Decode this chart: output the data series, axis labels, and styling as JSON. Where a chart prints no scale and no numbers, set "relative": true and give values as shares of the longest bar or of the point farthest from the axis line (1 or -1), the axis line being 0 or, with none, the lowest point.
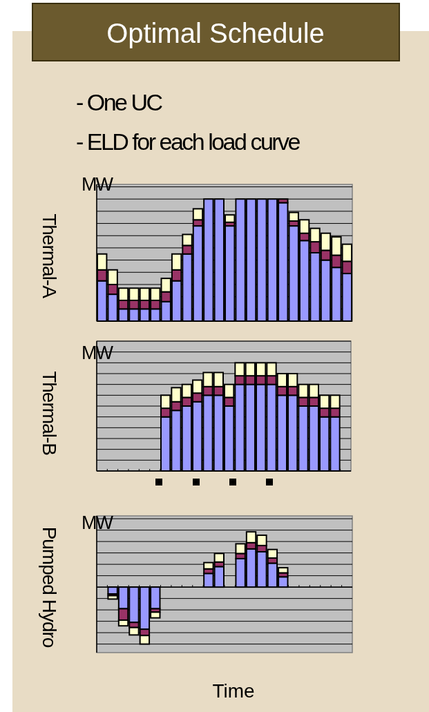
{
  "chart_data": [
    {
      "type": "bar",
      "title": "Optimal Schedule",
      "ylabel": "Thermal-A",
      "annotations": [
        "- One UC",
        "- ELD for each load curve",
        "MW"
      ],
      "stacked": true,
      "relative": true,
      "grid": "y",
      "categories": [
        null,
        null,
        null,
        null,
        null,
        null,
        null,
        null,
        null,
        null,
        null,
        null,
        null,
        null,
        null,
        null,
        null,
        null,
        null,
        null,
        null,
        null,
        null,
        null
      ],
      "series": [
        {
          "color": "#9999ff",
          "values": [
            0.33,
            0.22,
            0.1,
            0.1,
            0.1,
            0.1,
            0.16,
            0.33,
            0.55,
            0.78,
            1,
            1,
            0.78,
            1,
            1,
            1,
            1,
            0.97,
            0.78,
            0.66,
            0.56,
            0.5,
            0.44,
            0.39
          ]
        },
        {
          "color": "#993366",
          "values": [
            0.09,
            0.08,
            0.07,
            0.07,
            0.07,
            0.07,
            0.08,
            0.09,
            0.07,
            0.05,
            null,
            null,
            0.03,
            null,
            null,
            null,
            null,
            0.03,
            0.04,
            0.06,
            0.09,
            0.08,
            0.1,
            0.1
          ]
        },
        {
          "color": "#ffffcc",
          "values": [
            0.13,
            0.12,
            0.1,
            0.1,
            0.1,
            0.1,
            0.11,
            0.13,
            0.09,
            0.09,
            null,
            null,
            0.06,
            null,
            null,
            null,
            null,
            null,
            0.07,
            0.11,
            0.11,
            0.14,
            0.15,
            0.14
          ]
        }
      ]
    },
    {
      "type": "bar",
      "ylabel": "Thermal-B",
      "annotations": [
        "MW"
      ],
      "stacked": true,
      "relative": true,
      "grid": "y",
      "categories": [
        null,
        null,
        null,
        null,
        null,
        null,
        null,
        null,
        null,
        null,
        null,
        null,
        null,
        null,
        null,
        null,
        null,
        null,
        null,
        null,
        null,
        null,
        null,
        null
      ],
      "series": [
        {
          "color": "#9999ff",
          "values": [
            null,
            null,
            null,
            null,
            null,
            null,
            0.5,
            0.56,
            0.6,
            0.64,
            0.7,
            0.7,
            0.6,
            0.8,
            0.8,
            0.8,
            0.8,
            0.7,
            0.7,
            0.6,
            0.6,
            0.5,
            0.5,
            null
          ]
        },
        {
          "color": "#993366",
          "values": [
            null,
            null,
            null,
            null,
            null,
            null,
            0.08,
            0.08,
            0.08,
            0.08,
            0.08,
            0.08,
            0.08,
            0.08,
            0.08,
            0.08,
            0.08,
            0.08,
            0.08,
            0.08,
            0.08,
            0.08,
            0.08,
            null
          ]
        },
        {
          "color": "#ffffcc",
          "values": [
            null,
            null,
            null,
            null,
            null,
            null,
            0.12,
            0.13,
            0.12,
            0.12,
            0.13,
            0.13,
            0.12,
            0.12,
            0.12,
            0.12,
            0.12,
            0.12,
            0.12,
            0.12,
            0.12,
            0.12,
            0.12,
            null
          ]
        }
      ]
    },
    {
      "type": "bar",
      "ylabel": "Pumped Hydro",
      "xlabel": "Time",
      "annotations": [
        "MW"
      ],
      "stacked": true,
      "relative": true,
      "grid": "y",
      "categories": [
        null,
        null,
        null,
        null,
        null,
        null,
        null,
        null,
        null,
        null,
        null,
        null,
        null,
        null,
        null,
        null,
        null,
        null,
        null,
        null,
        null,
        null,
        null,
        null
      ],
      "series": [
        {
          "color": "#9999ff",
          "values": [
            null,
            -0.12,
            -0.38,
            -0.62,
            -0.74,
            -0.38,
            null,
            null,
            null,
            null,
            0.24,
            0.36,
            null,
            0.5,
            0.67,
            0.62,
            0.42,
            0.18,
            null,
            null,
            null,
            null,
            null,
            null
          ]
        },
        {
          "color": "#993366",
          "values": [
            null,
            -0.03,
            -0.2,
            -0.09,
            -0.11,
            -0.06,
            null,
            null,
            null,
            null,
            0.08,
            0.08,
            null,
            0.09,
            0.11,
            0.11,
            0.09,
            0.07,
            null,
            null,
            null,
            null,
            null,
            null
          ]
        },
        {
          "color": "#ffffcc",
          "values": [
            null,
            -0.06,
            -0.1,
            -0.13,
            -0.15,
            -0.1,
            null,
            null,
            null,
            null,
            0.11,
            0.15,
            null,
            0.17,
            0.19,
            0.18,
            0.15,
            0.09,
            null,
            null,
            null,
            null,
            null,
            null
          ]
        }
      ]
    }
  ]
}
